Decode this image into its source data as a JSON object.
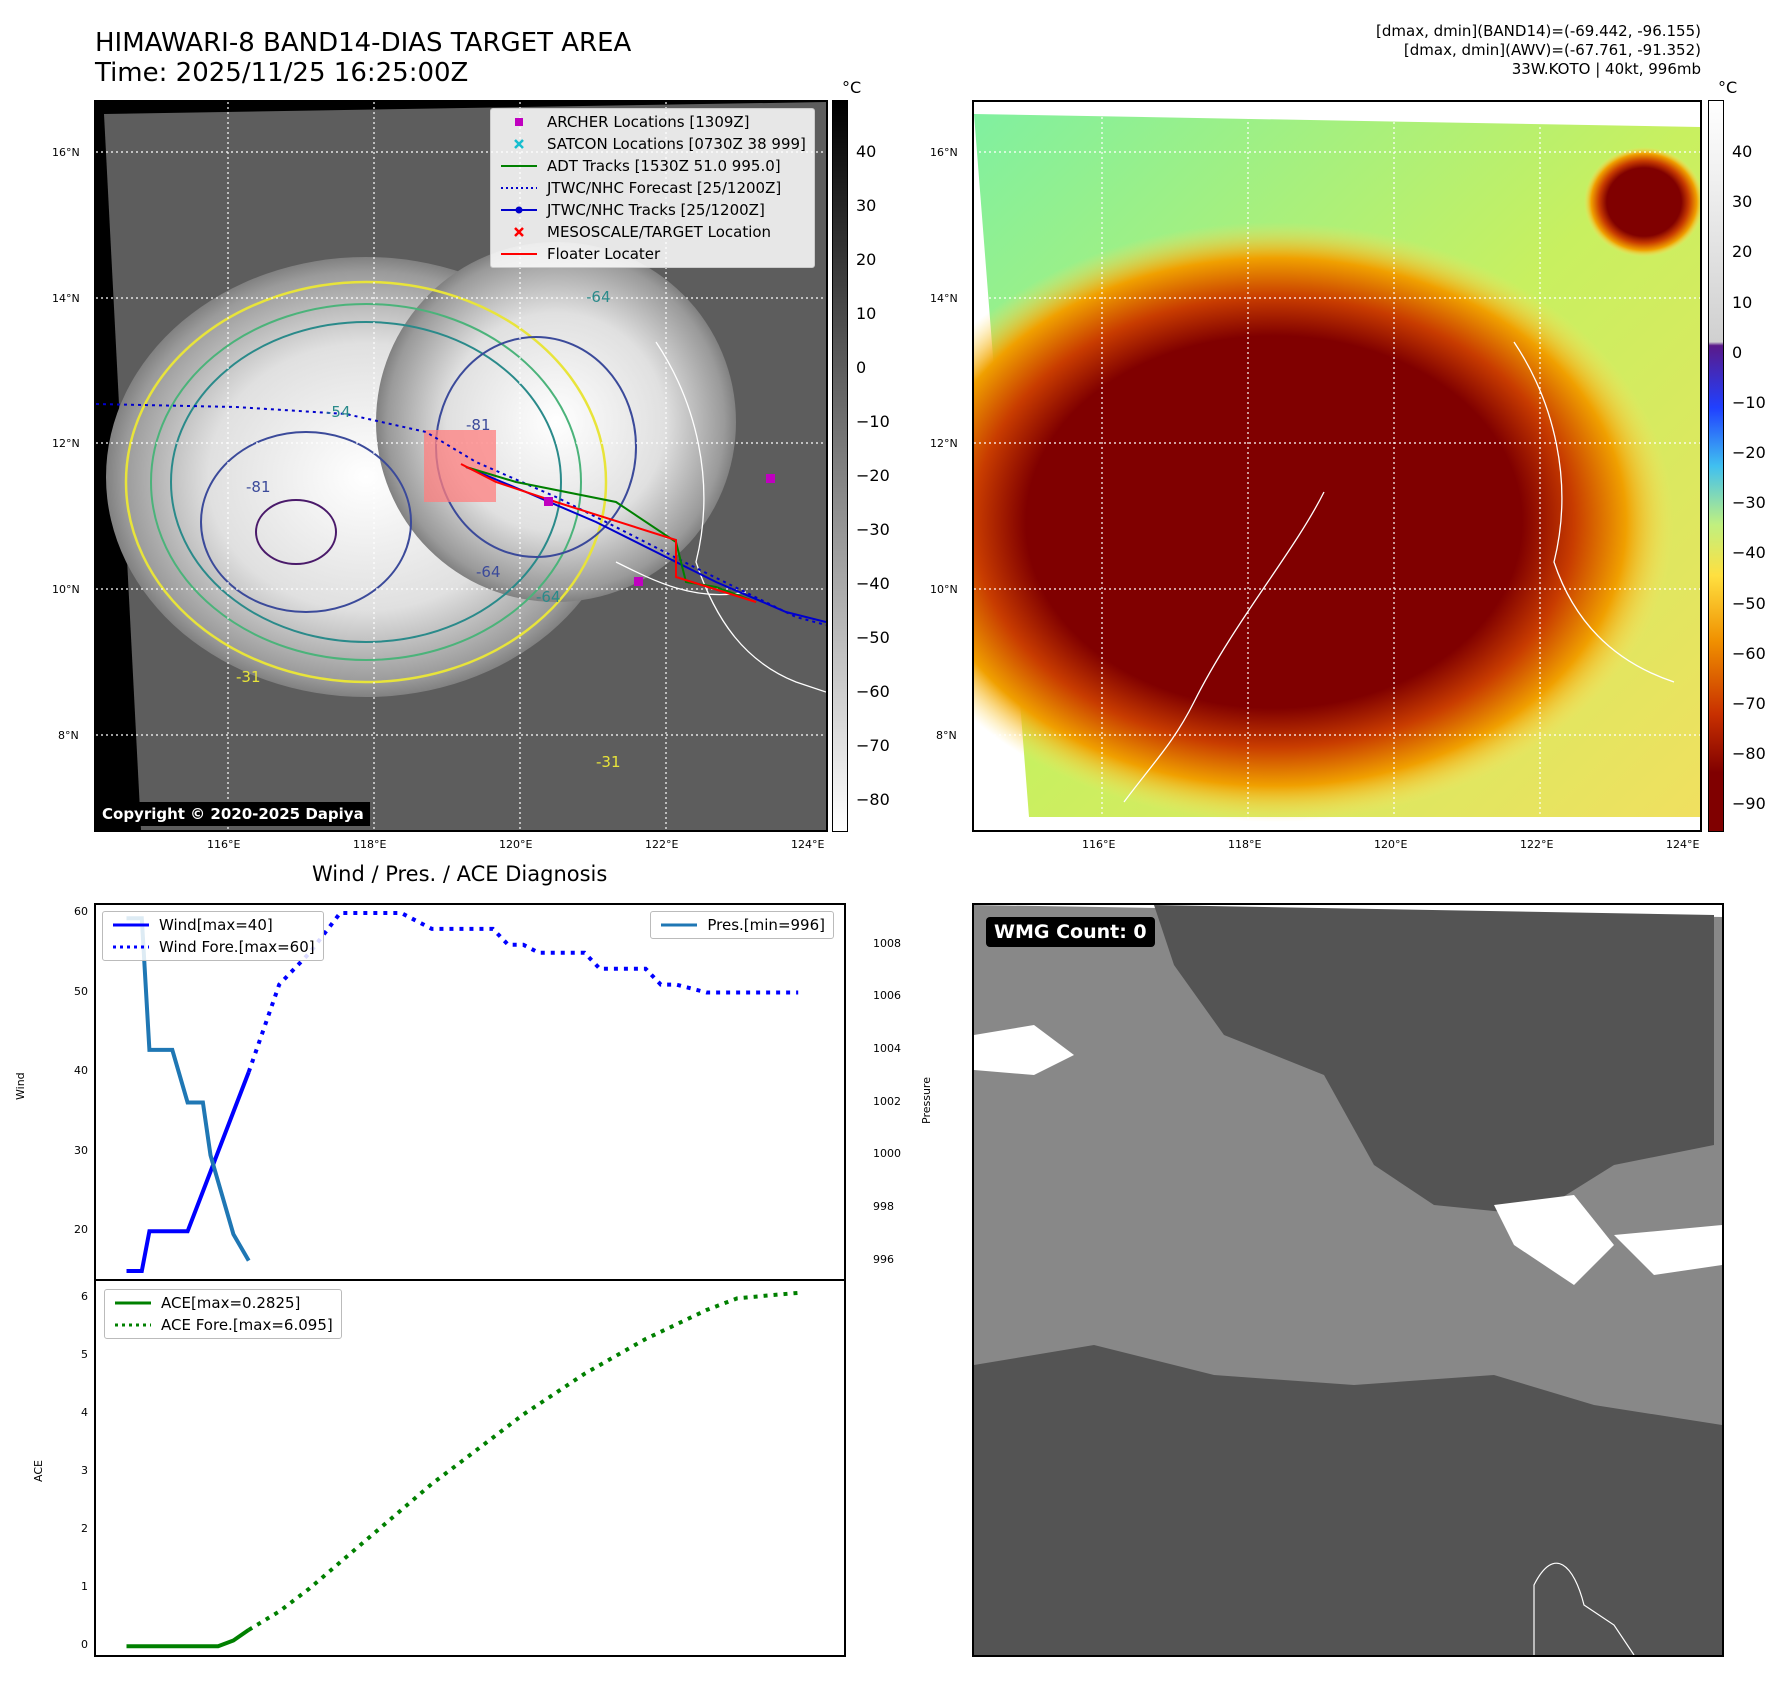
{
  "header": {
    "title_line1": "HIMAWARI-8 BAND14-DIAS TARGET AREA",
    "title_line2": "Time: 2025/11/25 16:25:00Z",
    "info_line1": "[dmax, dmin](BAND14)=(-69.442, -96.155)",
    "info_line2": "[dmax, dmin](AWV)=(-67.761, -91.352)",
    "info_line3": "33W.KOTO | 40kt, 996mb"
  },
  "map_axes": {
    "lon_ticks": [
      "116°E",
      "118°E",
      "120°E",
      "122°E",
      "124°E"
    ],
    "lat_ticks": [
      "16°N",
      "14°N",
      "12°N",
      "10°N",
      "8°N"
    ]
  },
  "ir_colorbar": {
    "unit": "°C",
    "ticks": [
      "40",
      "30",
      "20",
      "10",
      "0",
      "−10",
      "−20",
      "−30",
      "−40",
      "−50",
      "−60",
      "−70",
      "−80"
    ]
  },
  "awv_colorbar": {
    "unit": "°C",
    "ticks": [
      "40",
      "30",
      "20",
      "10",
      "0",
      "−10",
      "−20",
      "−30",
      "−40",
      "−50",
      "−60",
      "−70",
      "−80",
      "−90"
    ]
  },
  "map_legend": [
    {
      "label": "ARCHER Locations [1309Z]",
      "color": "#c000c0",
      "kind": "square"
    },
    {
      "label": "SATCON Locations [0730Z 38 999]",
      "color": "#17becf",
      "kind": "x"
    },
    {
      "label": "ADT Tracks [1530Z 51.0 995.0]",
      "color": "#008000",
      "kind": "line"
    },
    {
      "label": "JTWC/NHC Forecast [25/1200Z]",
      "color": "#0000cc",
      "kind": "dotted"
    },
    {
      "label": "JTWC/NHC Tracks [25/1200Z]",
      "color": "#0000cc",
      "kind": "linedot"
    },
    {
      "label": "MESOSCALE/TARGET Location",
      "color": "#ff0000",
      "kind": "x"
    },
    {
      "label": "Floater Locater",
      "color": "#ff0000",
      "kind": "line"
    }
  ],
  "contour_labels": [
    "-81",
    "-81",
    "-64",
    "-64",
    "-31",
    "-31",
    "-54",
    "-64"
  ],
  "copyright": "Copyright © 2020-2025 Dapiya",
  "wmg_label": "WMG Count: 0",
  "chart_data": [
    {
      "type": "line",
      "title": "Wind / Pres. / ACE Diagnosis",
      "ylabel": "Wind",
      "ylabel_right": "Pressure",
      "ylim": [
        14,
        61
      ],
      "ylim_right": [
        995.3,
        1009.5
      ],
      "yticks": [
        20,
        30,
        40,
        50,
        60
      ],
      "yticks_right": [
        996,
        998,
        1000,
        1002,
        1004,
        1006,
        1008
      ],
      "series": [
        {
          "name": "Wind[max=40]",
          "axis": "left",
          "style": "solid",
          "color": "#0000ff",
          "x": [
            0,
            1,
            1.5,
            2,
            3,
            4,
            5,
            5.5,
            6,
            7,
            8
          ],
          "values": [
            15,
            15,
            20,
            20,
            20,
            20,
            25,
            27.5,
            30,
            35,
            40
          ]
        },
        {
          "name": "Wind Fore.[max=60]",
          "axis": "left",
          "style": "dotted",
          "color": "#0000ff",
          "x": [
            8,
            10,
            12,
            14,
            16,
            18,
            20,
            21,
            22,
            24,
            25,
            26,
            27,
            28,
            30,
            31,
            32,
            34,
            35,
            36,
            38,
            40,
            42,
            44
          ],
          "values": [
            40,
            51,
            55,
            60,
            60,
            60,
            58,
            58,
            58,
            58,
            56,
            56,
            55,
            55,
            55,
            53,
            53,
            53,
            51,
            51,
            50,
            50,
            50,
            50
          ]
        },
        {
          "name": "Pres.[min=996]",
          "axis": "right",
          "style": "solid",
          "color": "#1f77b4",
          "x": [
            0,
            1,
            1.5,
            2,
            3,
            4,
            5,
            5.5,
            6,
            7,
            8
          ],
          "values": [
            1009,
            1009,
            1004,
            1004,
            1004,
            1002,
            1002,
            1000,
            999,
            997,
            996
          ]
        }
      ]
    },
    {
      "type": "line",
      "ylabel": "ACE",
      "ylim": [
        -0.15,
        6.3
      ],
      "yticks": [
        0,
        1,
        2,
        3,
        4,
        5,
        6
      ],
      "series": [
        {
          "name": "ACE[max=0.2825]",
          "style": "solid",
          "color": "#008000",
          "x": [
            0,
            4,
            5,
            6,
            7,
            8
          ],
          "values": [
            0,
            0,
            0,
            0,
            0.1,
            0.2825
          ]
        },
        {
          "name": "ACE Fore.[max=6.095]",
          "style": "dotted",
          "color": "#008000",
          "x": [
            8,
            10,
            12,
            14,
            16,
            18,
            20,
            22,
            24,
            26,
            28,
            30,
            32,
            34,
            36,
            38,
            40,
            42,
            44
          ],
          "values": [
            0.2825,
            0.6,
            1.0,
            1.45,
            1.9,
            2.35,
            2.8,
            3.2,
            3.6,
            4.0,
            4.35,
            4.7,
            5.0,
            5.3,
            5.55,
            5.8,
            6.0,
            6.05,
            6.095
          ]
        }
      ]
    }
  ]
}
